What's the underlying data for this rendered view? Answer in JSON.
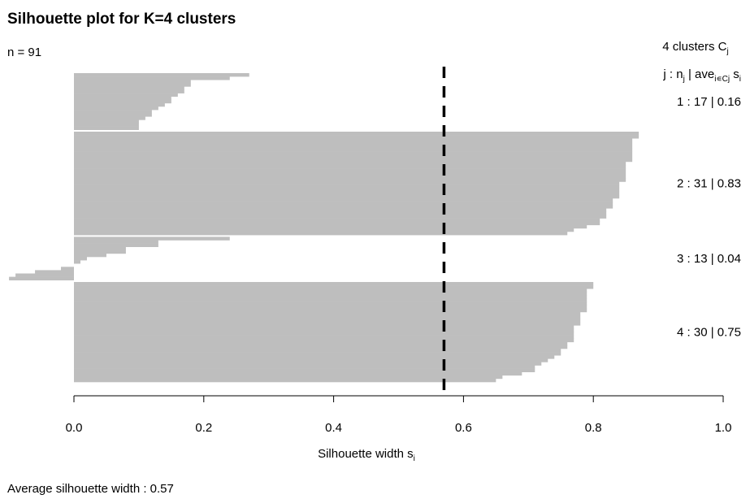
{
  "chart_data": {
    "type": "bar",
    "orientation": "horizontal",
    "title": "Silhouette plot for K=4 clusters",
    "n_label": "n = 91",
    "xlabel": "Silhouette width s",
    "xlabel_subscript": "i",
    "xlim": [
      0,
      1
    ],
    "xticks": [
      "0.0",
      "0.2",
      "0.4",
      "0.6",
      "0.8",
      "1.0"
    ],
    "bar_color": "#bebebe",
    "reference_line": {
      "value": 0.57,
      "style": "dashed",
      "color": "#000000"
    },
    "legend": {
      "header": "4 clusters C",
      "header_subscript": "j",
      "columns": "j :  n",
      "columns_n_sub": "j",
      "columns_ave": " | ave",
      "columns_ave_sub": "i∊Cj",
      "columns_s": " s",
      "columns_s_sub": "i"
    },
    "footer": "Average silhouette width :  0.57",
    "clusters": [
      {
        "label": "1 :   17  |  0.16",
        "j": 1,
        "n": 17,
        "ave": 0.16,
        "widths": [
          0.27,
          0.24,
          0.18,
          0.18,
          0.17,
          0.17,
          0.16,
          0.15,
          0.15,
          0.14,
          0.13,
          0.12,
          0.12,
          0.11,
          0.1,
          0.1,
          0.1
        ]
      },
      {
        "label": "2 :   31  |  0.83",
        "j": 2,
        "n": 31,
        "ave": 0.83,
        "widths": [
          0.87,
          0.87,
          0.86,
          0.86,
          0.86,
          0.86,
          0.86,
          0.86,
          0.86,
          0.85,
          0.85,
          0.85,
          0.85,
          0.85,
          0.85,
          0.84,
          0.84,
          0.84,
          0.84,
          0.84,
          0.83,
          0.83,
          0.83,
          0.82,
          0.82,
          0.82,
          0.81,
          0.81,
          0.79,
          0.77,
          0.76
        ]
      },
      {
        "label": "3 :   13  |  0.04",
        "j": 3,
        "n": 13,
        "ave": 0.04,
        "widths": [
          0.24,
          0.13,
          0.13,
          0.08,
          0.08,
          0.05,
          0.02,
          0.01,
          0.0,
          -0.02,
          -0.06,
          -0.09,
          -0.1
        ]
      },
      {
        "label": "4 :   30  |  0.75",
        "j": 4,
        "n": 30,
        "ave": 0.75,
        "widths": [
          0.8,
          0.8,
          0.79,
          0.79,
          0.79,
          0.79,
          0.79,
          0.79,
          0.79,
          0.78,
          0.78,
          0.78,
          0.78,
          0.77,
          0.77,
          0.77,
          0.77,
          0.77,
          0.76,
          0.76,
          0.75,
          0.75,
          0.74,
          0.73,
          0.72,
          0.71,
          0.71,
          0.69,
          0.66,
          0.65
        ]
      }
    ]
  }
}
